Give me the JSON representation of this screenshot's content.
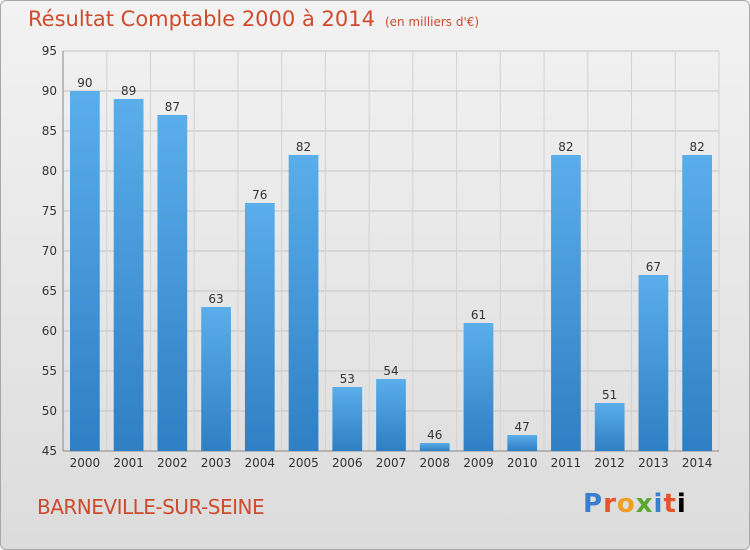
{
  "chart_data": {
    "type": "bar",
    "title": "Résultat Comptable 2000 à 2014",
    "subtitle": "(en milliers d'€)",
    "categories": [
      "2000",
      "2001",
      "2002",
      "2003",
      "2004",
      "2005",
      "2006",
      "2007",
      "2008",
      "2009",
      "2010",
      "2011",
      "2012",
      "2013",
      "2014"
    ],
    "values": [
      90,
      89,
      87,
      63,
      76,
      82,
      53,
      54,
      46,
      61,
      47,
      82,
      51,
      67,
      82
    ],
    "ylim": [
      45,
      95
    ],
    "yticks": [
      45,
      50,
      55,
      60,
      65,
      70,
      75,
      80,
      85,
      90,
      95
    ],
    "grid": true,
    "bar_color": "#4a9ee0"
  },
  "footer": {
    "commune": "BARNEVILLE-SUR-SEINE",
    "logo_letters": [
      "P",
      "r",
      "o",
      "x",
      "i",
      "t",
      "i"
    ]
  }
}
